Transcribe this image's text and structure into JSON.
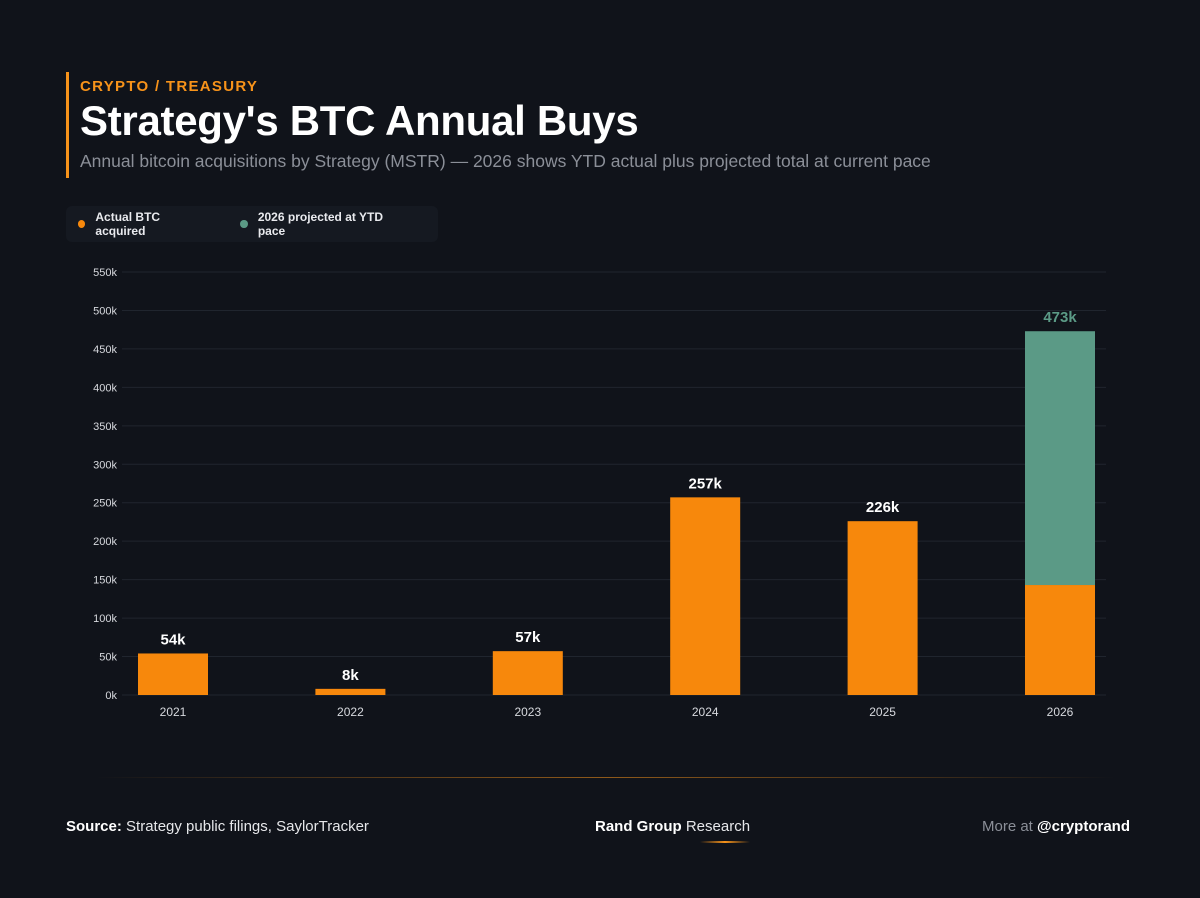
{
  "header": {
    "eyebrow": "CRYPTO / TREASURY",
    "title": "Strategy's BTC Annual Buys",
    "subtitle": "Annual bitcoin acquisitions by Strategy (MSTR) — 2026 shows YTD actual plus projected total at current pace"
  },
  "legend": {
    "items": [
      {
        "label": "Actual BTC acquired",
        "color": "#f7880c"
      },
      {
        "label": "2026 projected at YTD pace",
        "color": "#5b9a86"
      }
    ]
  },
  "chart_data": {
    "type": "bar",
    "stacked": true,
    "categories": [
      "2021",
      "2022",
      "2023",
      "2024",
      "2025",
      "2026"
    ],
    "series": [
      {
        "name": "Actual BTC acquired",
        "color": "#f7880c",
        "values": [
          54000,
          8000,
          57000,
          257000,
          226000,
          143000
        ]
      },
      {
        "name": "2026 projected at YTD pace",
        "color": "#5b9a86",
        "values": [
          0,
          0,
          0,
          0,
          0,
          330000
        ]
      }
    ],
    "data_labels": [
      "54k",
      "8k",
      "57k",
      "257k",
      "226k",
      "473k"
    ],
    "ylim": [
      0,
      550000
    ],
    "yticks": [
      0,
      50000,
      100000,
      150000,
      200000,
      250000,
      300000,
      350000,
      400000,
      450000,
      500000,
      550000
    ],
    "ytick_labels": [
      "0k",
      "50k",
      "100k",
      "150k",
      "200k",
      "250k",
      "300k",
      "350k",
      "400k",
      "450k",
      "500k",
      "550k"
    ],
    "grid": true,
    "legend_position": "top-left"
  },
  "footer": {
    "source_label": "Source:",
    "source_text": "Strategy public filings, SaylorTracker",
    "brand": "Rand Group",
    "brand_suffix": "Research",
    "more_label": "More at",
    "handle": "@cryptorand"
  }
}
